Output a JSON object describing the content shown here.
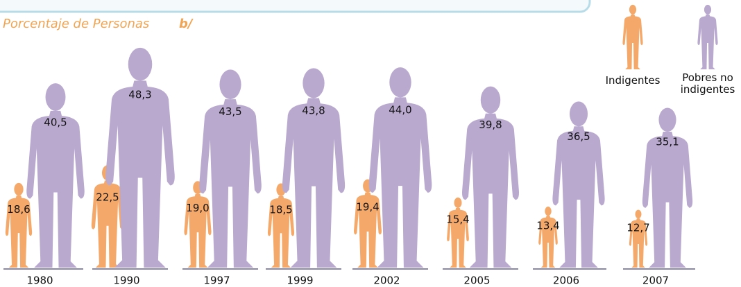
{
  "chart_data": {
    "type": "pictogram",
    "title": "Porcentaje de Personas",
    "annotation": "b/",
    "categories": [
      "1980",
      "1990",
      "1997",
      "1999",
      "2002",
      "2005",
      "2006",
      "2007"
    ],
    "series": [
      {
        "name": "Indigentes",
        "color": "#f4a96a",
        "values": [
          18.6,
          22.5,
          19.0,
          18.5,
          19.4,
          15.4,
          13.4,
          12.7
        ],
        "value_labels": [
          "18,6",
          "22,5",
          "19,0",
          "18,5",
          "19,4",
          "15,4",
          "13,4",
          "12,7"
        ]
      },
      {
        "name": "Pobres no indigentes",
        "color": "#b9a9cf",
        "values": [
          40.5,
          48.3,
          43.5,
          43.8,
          44.0,
          39.8,
          36.5,
          35.1
        ],
        "value_labels": [
          "40,5",
          "48,3",
          "43,5",
          "43,8",
          "44,0",
          "39,8",
          "36,5",
          "35,1"
        ]
      }
    ]
  }
}
